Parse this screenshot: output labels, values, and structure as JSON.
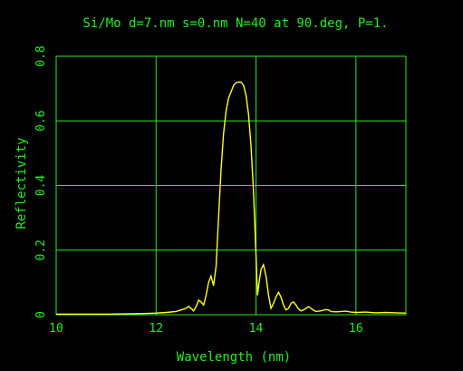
{
  "chart_data": {
    "type": "line",
    "title": "Si/Mo d=7.nm s=0.nm N=40 at 90.deg, P=1.",
    "xlabel": "Wavelength (nm)",
    "ylabel": "Reflectivity",
    "xlim": [
      10,
      17
    ],
    "ylim": [
      0,
      0.8
    ],
    "x_ticks": [
      10,
      12,
      14,
      16
    ],
    "x_tick_labels": [
      "10",
      "12",
      "14",
      "16"
    ],
    "x_grid": [
      10,
      12,
      14,
      16,
      17
    ],
    "y_ticks": [
      0,
      0.2,
      0.4,
      0.6,
      0.8
    ],
    "y_tick_labels": [
      "0",
      "0.2",
      "0.4",
      "0.6",
      "0.8"
    ],
    "y_grid": [
      0,
      0.2,
      0.4,
      0.6,
      0.8
    ],
    "grid": true,
    "series": [
      {
        "color": "#ffff22",
        "x": [
          10.0,
          10.5,
          11.0,
          11.5,
          11.8,
          12.0,
          12.2,
          12.4,
          12.5,
          12.6,
          12.65,
          12.7,
          12.75,
          12.8,
          12.85,
          12.9,
          12.95,
          13.0,
          13.05,
          13.1,
          13.15,
          13.2,
          13.25,
          13.3,
          13.35,
          13.4,
          13.45,
          13.5,
          13.55,
          13.6,
          13.65,
          13.7,
          13.75,
          13.8,
          13.85,
          13.9,
          13.95,
          14.0,
          14.03,
          14.06,
          14.1,
          14.15,
          14.2,
          14.25,
          14.3,
          14.35,
          14.4,
          14.45,
          14.5,
          14.55,
          14.6,
          14.65,
          14.7,
          14.75,
          14.8,
          14.85,
          14.9,
          14.95,
          15.0,
          15.05,
          15.1,
          15.15,
          15.2,
          15.3,
          15.4,
          15.45,
          15.5,
          15.6,
          15.7,
          15.8,
          15.9,
          16.0,
          16.2,
          16.4,
          16.6,
          16.8,
          17.0
        ],
        "y": [
          0.002,
          0.002,
          0.002,
          0.003,
          0.004,
          0.005,
          0.007,
          0.01,
          0.015,
          0.02,
          0.026,
          0.02,
          0.012,
          0.025,
          0.045,
          0.04,
          0.03,
          0.06,
          0.1,
          0.12,
          0.09,
          0.15,
          0.3,
          0.45,
          0.56,
          0.63,
          0.67,
          0.69,
          0.71,
          0.718,
          0.72,
          0.72,
          0.71,
          0.68,
          0.62,
          0.52,
          0.38,
          0.18,
          0.06,
          0.1,
          0.14,
          0.155,
          0.12,
          0.06,
          0.02,
          0.035,
          0.055,
          0.07,
          0.055,
          0.03,
          0.015,
          0.02,
          0.035,
          0.04,
          0.03,
          0.018,
          0.012,
          0.015,
          0.02,
          0.025,
          0.02,
          0.014,
          0.01,
          0.012,
          0.016,
          0.015,
          0.01,
          0.009,
          0.01,
          0.011,
          0.008,
          0.007,
          0.008,
          0.006,
          0.007,
          0.006,
          0.005
        ]
      }
    ]
  }
}
